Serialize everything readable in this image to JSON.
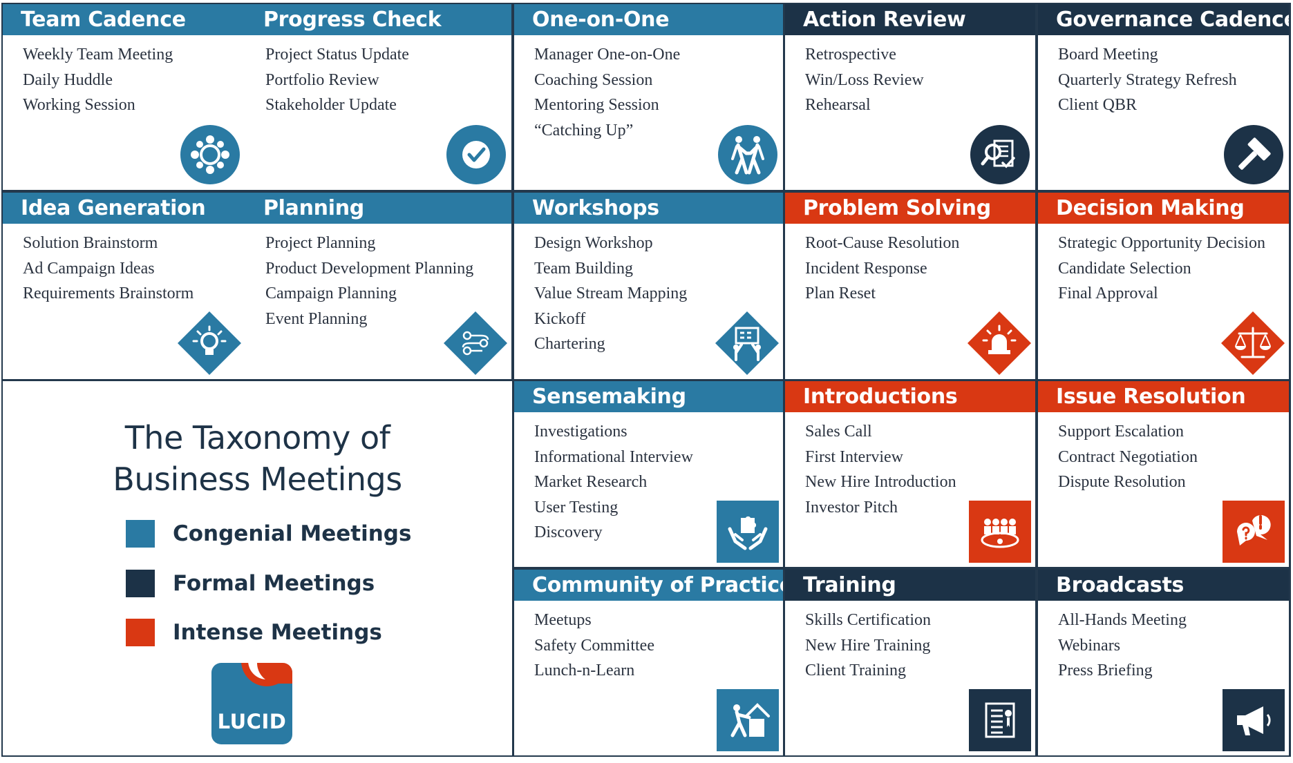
{
  "colors": {
    "congenial": "#2a7aa3",
    "formal": "#1c3247",
    "intense": "#d93813",
    "border": "#23384c"
  },
  "title": {
    "line1": "The Taxonomy of",
    "line2": "Business Meetings"
  },
  "legend": [
    {
      "label": "Congenial Meetings",
      "color": "#2a7aa3"
    },
    {
      "label": "Formal Meetings",
      "color": "#1c3247"
    },
    {
      "label": "Intense Meetings",
      "color": "#d93813"
    }
  ],
  "logo": {
    "text": "LUCID"
  },
  "categories": [
    {
      "title": "Team Cadence",
      "type": "congenial",
      "icon": "team-circle-icon",
      "items": [
        "Weekly Team Meeting",
        "Daily Huddle",
        "Working Session"
      ]
    },
    {
      "title": "Progress Check",
      "type": "congenial",
      "icon": "checkmark-icon",
      "items": [
        "Project Status Update",
        "Portfolio Review",
        "Stakeholder Update"
      ]
    },
    {
      "title": "One-on-One",
      "type": "congenial",
      "icon": "handshake-icon",
      "items": [
        "Manager One-on-One",
        "Coaching Session",
        "Mentoring Session",
        "“Catching Up”"
      ]
    },
    {
      "title": "Action Review",
      "type": "formal",
      "icon": "document-review-icon",
      "items": [
        "Retrospective",
        "Win/Loss Review",
        "Rehearsal"
      ]
    },
    {
      "title": "Governance Cadence",
      "type": "formal",
      "icon": "gavel-icon",
      "items": [
        "Board Meeting",
        "Quarterly Strategy Refresh",
        "Client QBR"
      ]
    },
    {
      "title": "Idea Generation",
      "type": "congenial",
      "icon": "lightbulb-icon",
      "items": [
        "Solution Brainstorm",
        "Ad Campaign Ideas",
        "Requirements Brainstorm"
      ]
    },
    {
      "title": "Planning",
      "type": "congenial",
      "icon": "flowchart-icon",
      "items": [
        "Project Planning",
        "Product Development Planning",
        "Campaign Planning",
        "Event Planning"
      ]
    },
    {
      "title": "Workshops",
      "type": "congenial",
      "icon": "whiteboard-icon",
      "items": [
        "Design Workshop",
        "Team Building",
        "Value Stream Mapping",
        "Kickoff",
        "Chartering"
      ]
    },
    {
      "title": "Problem Solving",
      "type": "intense",
      "icon": "alarm-light-icon",
      "items": [
        "Root-Cause Resolution",
        "Incident Response",
        "Plan Reset"
      ]
    },
    {
      "title": "Decision Making",
      "type": "intense",
      "icon": "scales-icon",
      "items": [
        "Strategic Opportunity Decision",
        "Candidate Selection",
        "Final Approval"
      ]
    },
    {
      "title": "Sensemaking",
      "type": "congenial",
      "icon": "puzzle-hands-icon",
      "items": [
        "Investigations",
        "Informational Interview",
        "Market Research",
        "User Testing",
        "Discovery"
      ]
    },
    {
      "title": "Introductions",
      "type": "intense",
      "icon": "conference-table-icon",
      "items": [
        "Sales Call",
        "First Interview",
        "New Hire Introduction",
        "Investor Pitch"
      ]
    },
    {
      "title": "Issue Resolution",
      "type": "intense",
      "icon": "speech-bubbles-icon",
      "items": [
        "Support Escalation",
        "Contract Negotiation",
        "Dispute Resolution"
      ]
    },
    {
      "title": "Community of Practice",
      "type": "congenial",
      "icon": "helping-hand-icon",
      "items": [
        "Meetups",
        "Safety Committee",
        "Lunch-n-Learn"
      ]
    },
    {
      "title": "Training",
      "type": "formal",
      "icon": "certificate-icon",
      "items": [
        "Skills Certification",
        "New Hire Training",
        "Client Training"
      ]
    },
    {
      "title": "Broadcasts",
      "type": "formal",
      "icon": "megaphone-icon",
      "items": [
        "All-Hands Meeting",
        "Webinars",
        "Press Briefing"
      ]
    }
  ]
}
